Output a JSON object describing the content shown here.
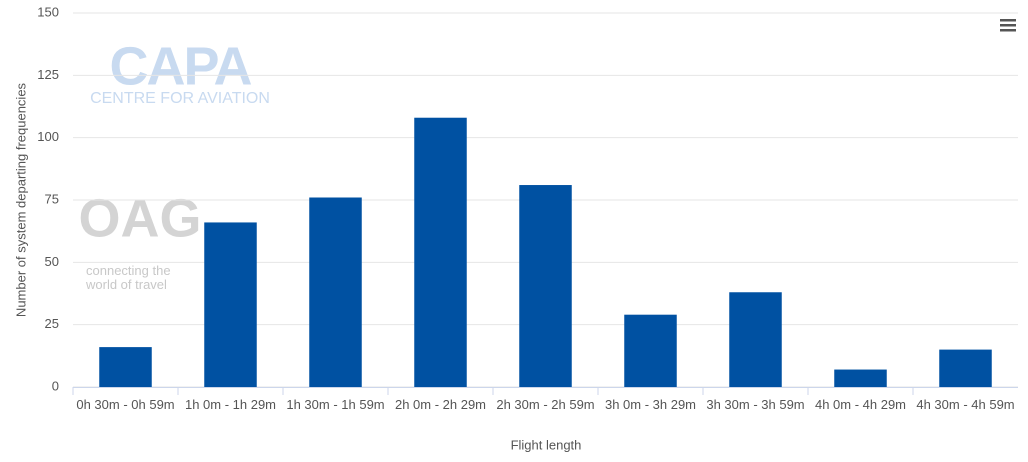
{
  "chart_data": {
    "type": "bar",
    "x_label": "Flight length",
    "y_label": "Number of system departing frequencies",
    "categories": [
      "0h 30m - 0h 59m",
      "1h 0m - 1h 29m",
      "1h 30m - 1h 59m",
      "2h 0m - 2h 29m",
      "2h 30m - 2h 59m",
      "3h 0m - 3h 29m",
      "3h 30m - 3h 59m",
      "4h 0m - 4h 29m",
      "4h 30m - 4h 59m"
    ],
    "values": [
      16,
      66,
      76,
      108,
      81,
      29,
      38,
      7,
      15
    ],
    "color": "#0051a2",
    "ylim": [
      0,
      150
    ],
    "yticks": [
      0,
      25,
      50,
      75,
      100,
      125,
      150
    ],
    "grid": true,
    "watermarks": {
      "capa": "CAPA",
      "capa_sub": "CENTRE FOR AVIATION",
      "oag": "OAG",
      "oag_sub": "connecting the world of travel"
    }
  }
}
